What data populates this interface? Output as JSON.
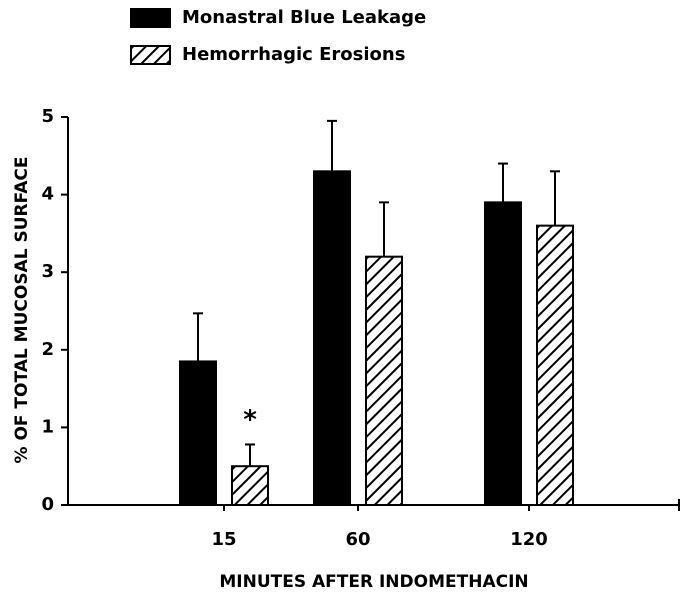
{
  "chart_data": {
    "type": "bar",
    "categories": [
      "15",
      "60",
      "120"
    ],
    "series": [
      {
        "name": "Monastral Blue Leakage",
        "color": "#000000",
        "values": [
          1.85,
          4.3,
          3.9
        ],
        "errors": [
          0.62,
          0.65,
          0.5
        ]
      },
      {
        "name": "Hemorrhagic Erosions",
        "color": "#000000",
        "hatch": true,
        "values": [
          0.5,
          3.2,
          3.6
        ],
        "errors": [
          0.28,
          0.7,
          0.7
        ]
      }
    ],
    "annotations": [
      {
        "text": "*",
        "series": 1,
        "category": 0
      }
    ],
    "xlabel": "MINUTES AFTER INDOMETHACIN",
    "ylabel": "% OF TOTAL MUCOSAL SURFACE",
    "ylim": [
      0,
      5
    ],
    "yticks": [
      0,
      1,
      2,
      3,
      4,
      5
    ],
    "grid": false
  }
}
